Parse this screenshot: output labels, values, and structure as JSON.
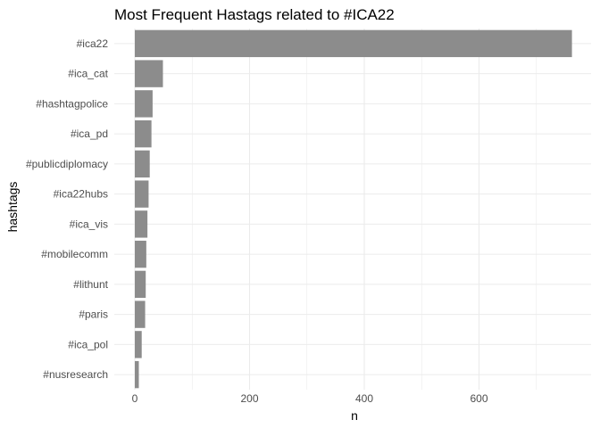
{
  "chart_data": {
    "type": "bar",
    "orientation": "horizontal",
    "title": "Most Frequent Hastags related to #ICA22",
    "xlabel": "n",
    "ylabel": "hashtags",
    "categories": [
      "#ica22",
      "#ica_cat",
      "#hashtagpolice",
      "#ica_pd",
      "#publicdiplomacy",
      "#ica22hubs",
      "#ica_vis",
      "#mobilecomm",
      "#lithunt",
      "#paris",
      "#ica_pol",
      "#nusresearch"
    ],
    "values": [
      762,
      49,
      31,
      29,
      26,
      24,
      22,
      20,
      19,
      18,
      12,
      7
    ],
    "xlim": [
      0,
      795
    ],
    "xticks": [
      0,
      200,
      400,
      600
    ],
    "grid": true,
    "bar_color": "#8c8c8c",
    "grid_color": "#ebebeb"
  }
}
